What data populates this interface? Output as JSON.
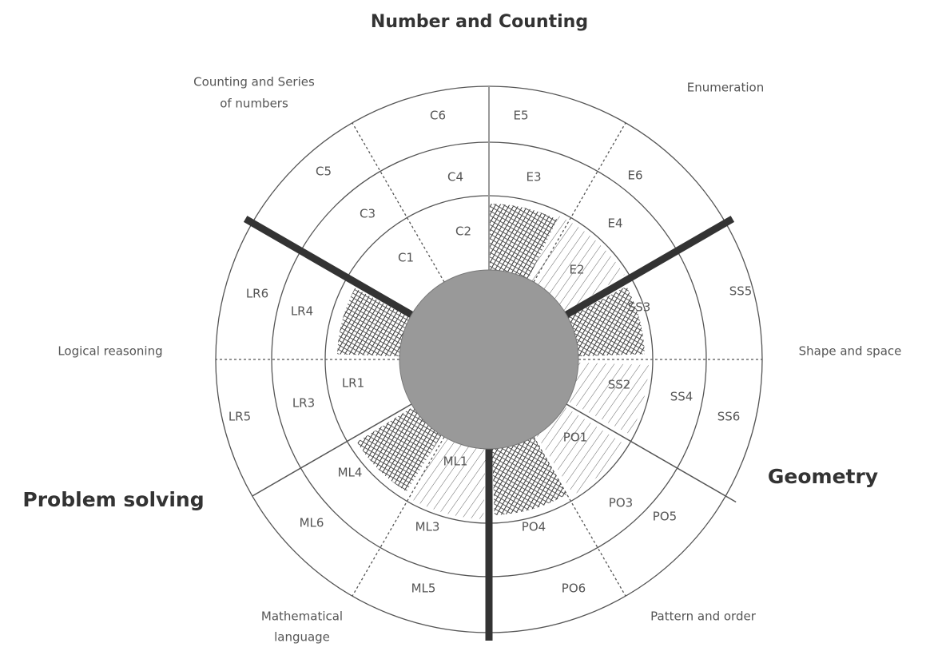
{
  "title": "Number and Counting",
  "domains": [
    "Problem solving",
    "Geometry"
  ],
  "areas": [
    "Counting and Series",
    "of numbers",
    "Enumeration",
    "Logical reasoning",
    "Shape and space",
    "Mathematical",
    "language",
    "Pattern and order"
  ],
  "cells": [
    "C6",
    "E5",
    "C5",
    "E6",
    "C4",
    "E3",
    "C3",
    "E4",
    "C2",
    "C1",
    "E2",
    "LR6",
    "LR4",
    "SS3",
    "SS5",
    "LR1",
    "LR3",
    "SS2",
    "SS4",
    "SS6",
    "LR5",
    "PO1",
    "ML1",
    "ML4",
    "PO3",
    "PO5",
    "ML6",
    "ML3",
    "PO4",
    "ML5",
    "PO6"
  ]
}
